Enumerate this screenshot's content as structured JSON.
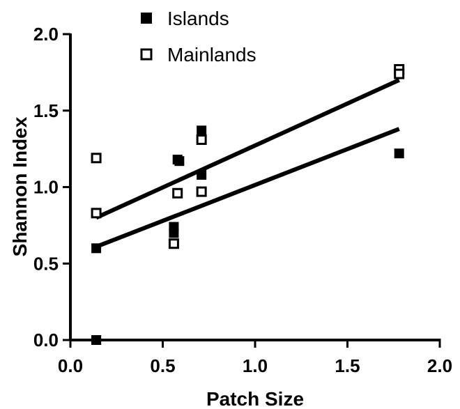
{
  "chart_data": {
    "type": "scatter",
    "title": "",
    "xlabel": "Patch Size",
    "ylabel": "Shannon Index",
    "xlim": [
      0.0,
      2.0
    ],
    "ylim": [
      0.0,
      2.0
    ],
    "x_ticks": [
      "0.0",
      "0.5",
      "1.0",
      "1.5",
      "2.0"
    ],
    "y_ticks": [
      "0.0",
      "0.5",
      "1.0",
      "1.5",
      "2.0"
    ],
    "grid": false,
    "legend_position": "top-center",
    "series": [
      {
        "name": "Islands",
        "marker": "filled-square",
        "color": "#000000",
        "x": [
          0.14,
          0.14,
          0.14,
          0.56,
          0.56,
          0.58,
          0.59,
          0.71,
          0.71,
          1.78
        ],
        "y": [
          0.0,
          0.0,
          0.6,
          0.74,
          0.7,
          1.18,
          1.17,
          1.37,
          1.08,
          1.22
        ],
        "fit": {
          "x": [
            0.14,
            1.78
          ],
          "y": [
            0.61,
            1.38
          ]
        }
      },
      {
        "name": "Mainlands",
        "marker": "open-square",
        "color": "#000000",
        "x": [
          0.14,
          0.14,
          0.56,
          0.58,
          0.71,
          0.71,
          1.78,
          1.78
        ],
        "y": [
          1.19,
          0.83,
          0.63,
          0.96,
          1.31,
          0.97,
          1.77,
          1.74
        ],
        "fit": {
          "x": [
            0.14,
            1.78
          ],
          "y": [
            0.8,
            1.7
          ]
        }
      }
    ]
  }
}
